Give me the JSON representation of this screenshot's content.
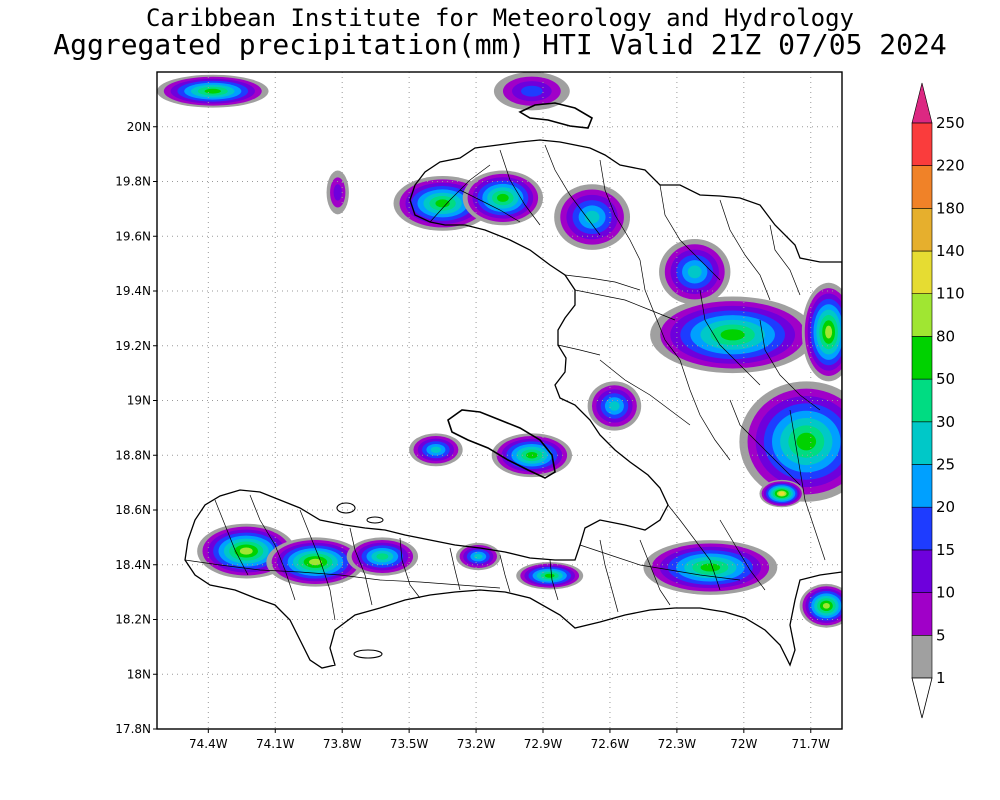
{
  "header": {
    "line1": "Caribbean Institute for Meteorology and Hydrology",
    "line2": "Aggregated precipitation(mm) HTI Valid 21Z 07/05 2024"
  },
  "axes": {
    "lon_ticks": [
      {
        "value": -74.4,
        "label": "74.4W"
      },
      {
        "value": -74.1,
        "label": "74.1W"
      },
      {
        "value": -73.8,
        "label": "73.8W"
      },
      {
        "value": -73.5,
        "label": "73.5W"
      },
      {
        "value": -73.2,
        "label": "73.2W"
      },
      {
        "value": -72.9,
        "label": "72.9W"
      },
      {
        "value": -72.6,
        "label": "72.6W"
      },
      {
        "value": -72.3,
        "label": "72.3W"
      },
      {
        "value": -72.0,
        "label": "72W"
      },
      {
        "value": -71.7,
        "label": "71.7W"
      }
    ],
    "lat_ticks": [
      {
        "value": 20.0,
        "label": "20N"
      },
      {
        "value": 19.8,
        "label": "19.8N"
      },
      {
        "value": 19.6,
        "label": "19.6N"
      },
      {
        "value": 19.4,
        "label": "19.4N"
      },
      {
        "value": 19.2,
        "label": "19.2N"
      },
      {
        "value": 19.0,
        "label": "19N"
      },
      {
        "value": 18.8,
        "label": "18.8N"
      },
      {
        "value": 18.6,
        "label": "18.6N"
      },
      {
        "value": 18.4,
        "label": "18.4N"
      },
      {
        "value": 18.2,
        "label": "18.2N"
      },
      {
        "value": 18.0,
        "label": "18N"
      },
      {
        "value": 17.8,
        "label": "17.8N"
      }
    ],
    "lon_range": [
      -74.63,
      -71.56
    ],
    "lat_range": [
      17.8,
      20.2
    ],
    "grid": "dotted"
  },
  "legend": {
    "levels": [
      {
        "label": "1",
        "color": "#a0a0a0"
      },
      {
        "label": "5",
        "color": "#a000c8"
      },
      {
        "label": "10",
        "color": "#6e00dc"
      },
      {
        "label": "15",
        "color": "#1e3cff"
      },
      {
        "label": "20",
        "color": "#00a0ff"
      },
      {
        "label": "25",
        "color": "#00c8c8"
      },
      {
        "label": "30",
        "color": "#00dc82"
      },
      {
        "label": "50",
        "color": "#00d200"
      },
      {
        "label": "80",
        "color": "#a0e632"
      },
      {
        "label": "110",
        "color": "#e6dc32"
      },
      {
        "label": "140",
        "color": "#e6af2d"
      },
      {
        "label": "180",
        "color": "#f08228"
      },
      {
        "label": "220",
        "color": "#fa3c3c"
      },
      {
        "label": "250",
        "color": "#f00082"
      }
    ],
    "under_color": "#ffffff",
    "over_color": "#dc2882"
  },
  "rain_cells": [
    {
      "lon": -74.38,
      "lat": 20.13,
      "rx": 0.25,
      "ry": 0.06,
      "max": 7
    },
    {
      "lon": -72.95,
      "lat": 20.13,
      "rx": 0.17,
      "ry": 0.07,
      "max": 3
    },
    {
      "lon": -73.82,
      "lat": 19.76,
      "rx": 0.05,
      "ry": 0.08,
      "max": 2
    },
    {
      "lon": -73.35,
      "lat": 19.72,
      "rx": 0.22,
      "ry": 0.1,
      "max": 7
    },
    {
      "lon": -73.08,
      "lat": 19.74,
      "rx": 0.18,
      "ry": 0.1,
      "max": 7
    },
    {
      "lon": -72.68,
      "lat": 19.67,
      "rx": 0.17,
      "ry": 0.12,
      "max": 5
    },
    {
      "lon": -72.22,
      "lat": 19.47,
      "rx": 0.16,
      "ry": 0.12,
      "max": 5
    },
    {
      "lon": -72.05,
      "lat": 19.24,
      "rx": 0.37,
      "ry": 0.14,
      "max": 7
    },
    {
      "lon": -71.62,
      "lat": 19.25,
      "rx": 0.12,
      "ry": 0.18,
      "max": 8
    },
    {
      "lon": -72.58,
      "lat": 18.98,
      "rx": 0.12,
      "ry": 0.09,
      "max": 5
    },
    {
      "lon": -71.72,
      "lat": 18.85,
      "rx": 0.3,
      "ry": 0.22,
      "max": 7
    },
    {
      "lon": -71.83,
      "lat": 18.66,
      "rx": 0.1,
      "ry": 0.05,
      "max": 9
    },
    {
      "lon": -73.38,
      "lat": 18.82,
      "rx": 0.12,
      "ry": 0.06,
      "max": 5
    },
    {
      "lon": -72.95,
      "lat": 18.8,
      "rx": 0.18,
      "ry": 0.08,
      "max": 7
    },
    {
      "lon": -74.23,
      "lat": 18.45,
      "rx": 0.22,
      "ry": 0.1,
      "max": 8
    },
    {
      "lon": -73.92,
      "lat": 18.41,
      "rx": 0.22,
      "ry": 0.09,
      "max": 8
    },
    {
      "lon": -73.62,
      "lat": 18.43,
      "rx": 0.16,
      "ry": 0.07,
      "max": 6
    },
    {
      "lon": -73.19,
      "lat": 18.43,
      "rx": 0.1,
      "ry": 0.05,
      "max": 5
    },
    {
      "lon": -72.87,
      "lat": 18.36,
      "rx": 0.15,
      "ry": 0.05,
      "max": 7
    },
    {
      "lon": -72.15,
      "lat": 18.39,
      "rx": 0.3,
      "ry": 0.1,
      "max": 7
    },
    {
      "lon": -71.63,
      "lat": 18.25,
      "rx": 0.12,
      "ry": 0.08,
      "max": 8
    }
  ]
}
